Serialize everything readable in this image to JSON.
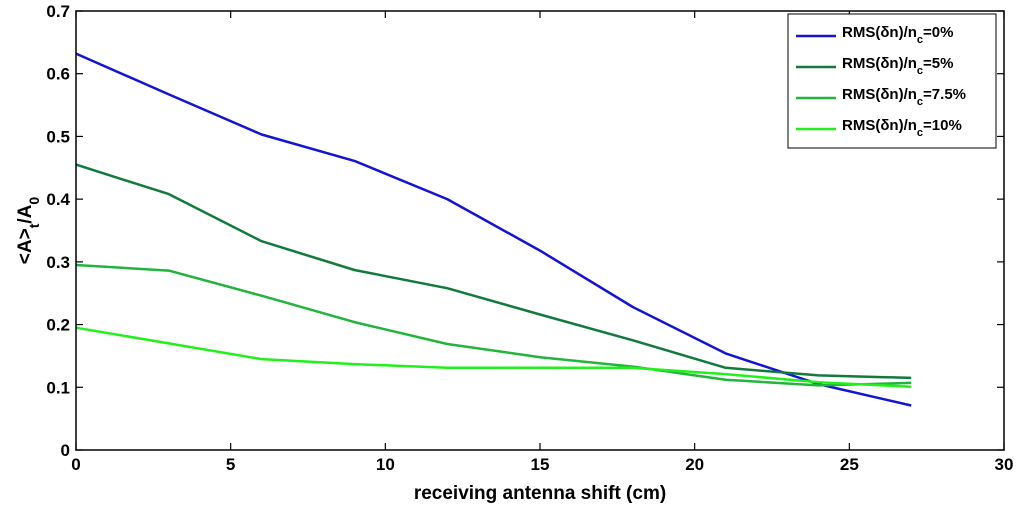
{
  "chart_data": {
    "type": "line",
    "xlabel": "receiving antenna shift (cm)",
    "ylabel": {
      "main": "<A>",
      "sub1": "t",
      "mid": "/A",
      "sub2": "0"
    },
    "xlim": [
      0,
      30
    ],
    "ylim": [
      0,
      0.7
    ],
    "x_ticks": [
      0,
      5,
      10,
      15,
      20,
      25,
      30
    ],
    "y_ticks": [
      0,
      0.1,
      0.2,
      0.3,
      0.4,
      0.5,
      0.6,
      0.7
    ],
    "grid": false,
    "legend_position": "top-right",
    "x": [
      0,
      3,
      6,
      9,
      12,
      15,
      18,
      21,
      24,
      27
    ],
    "series": [
      {
        "name": "RMS(δn)/n_c=0%",
        "label_parts": {
          "pre": "RMS(δn)/n",
          "sub": "c",
          "post": "=0%"
        },
        "color": "#1414d2",
        "values": [
          0.632,
          0.567,
          0.503,
          0.461,
          0.4,
          0.318,
          0.228,
          0.154,
          0.105,
          0.071
        ]
      },
      {
        "name": "RMS(δn)/n_c=5%",
        "label_parts": {
          "pre": "RMS(δn)/n",
          "sub": "c",
          "post": "=5%"
        },
        "color": "#137a3e",
        "values": [
          0.455,
          0.408,
          0.333,
          0.287,
          0.258,
          0.216,
          0.175,
          0.131,
          0.119,
          0.115
        ]
      },
      {
        "name": "RMS(δn)/n_c=7.5%",
        "label_parts": {
          "pre": "RMS(δn)/n",
          "sub": "c",
          "post": "=7.5%"
        },
        "color": "#22b43c",
        "values": [
          0.295,
          0.286,
          0.246,
          0.204,
          0.169,
          0.148,
          0.133,
          0.112,
          0.103,
          0.107
        ]
      },
      {
        "name": "RMS(δn)/n_c=10%",
        "label_parts": {
          "pre": "RMS(δn)/n",
          "sub": "c",
          "post": "=10%"
        },
        "color": "#22f01a",
        "values": [
          0.195,
          0.17,
          0.145,
          0.137,
          0.131,
          0.131,
          0.131,
          0.121,
          0.108,
          0.101
        ]
      }
    ]
  }
}
